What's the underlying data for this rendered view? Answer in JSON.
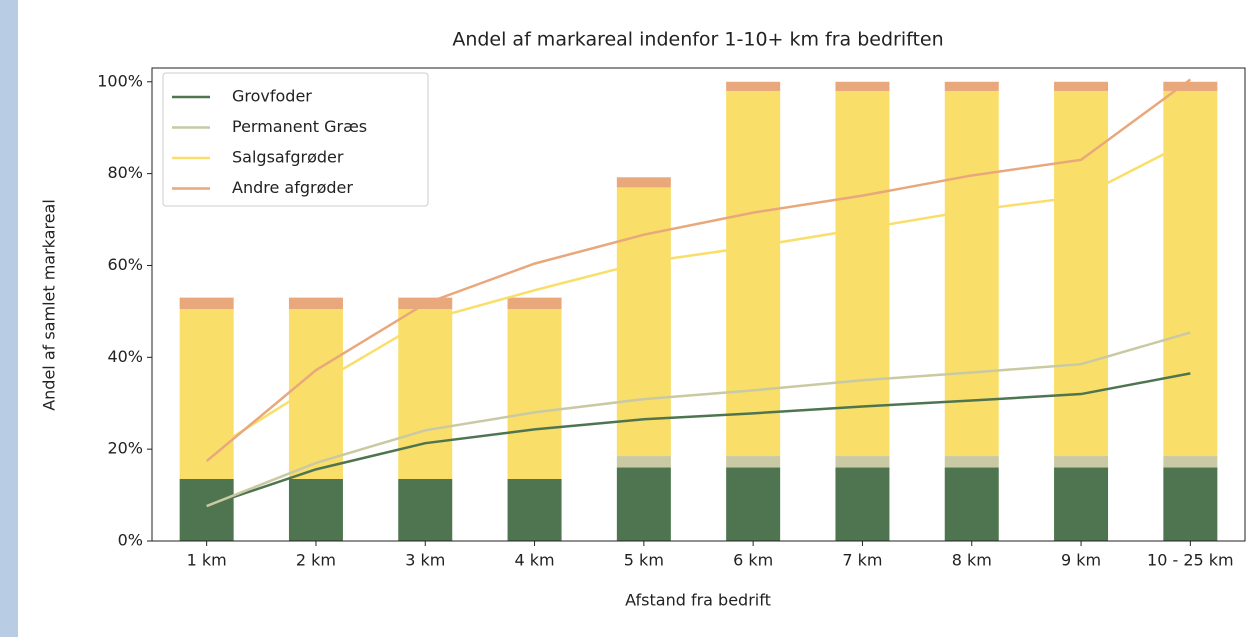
{
  "chart_data": {
    "type": "stacked_bar_line",
    "title": "Andel af markareal indenfor 1-10+ km fra bedriften",
    "xlabel": "Afstand fra bedrift",
    "ylabel": "Andel af samlet markareal",
    "categories": [
      "1 km",
      "2 km",
      "3 km",
      "4 km",
      "5 km",
      "6 km",
      "7 km",
      "8 km",
      "9 km",
      "10 - 25 km"
    ],
    "ylim": [
      0,
      103
    ],
    "yticks": [
      {
        "value": 0,
        "label": "0%"
      },
      {
        "value": 20,
        "label": "20%"
      },
      {
        "value": 40,
        "label": "40%"
      },
      {
        "value": 60,
        "label": "60%"
      },
      {
        "value": 80,
        "label": "80%"
      },
      {
        "value": 100,
        "label": "100%"
      }
    ],
    "legend": "upper left",
    "series": [
      {
        "name": "Grovfoder",
        "color": "#4e7550",
        "values": [
          13.5,
          13.5,
          13.5,
          13.5,
          16,
          16,
          16,
          16,
          16,
          16
        ],
        "line_values": [
          7.6,
          15.6,
          21.3,
          24.3,
          26.5,
          27.8,
          29.3,
          30.6,
          32,
          36.5
        ]
      },
      {
        "name": "Permanent Græs",
        "color": "#c9c9a3",
        "values": [
          0,
          0,
          0,
          0,
          2.5,
          2.5,
          2.5,
          2.5,
          2.5,
          2.5
        ],
        "line_values": [
          7.6,
          17,
          24.1,
          28,
          30.9,
          32.8,
          35,
          36.7,
          38.5,
          45.4
        ]
      },
      {
        "name": "Salgsafgrøder",
        "color": "#f9df6a",
        "values": [
          37,
          37,
          37,
          37,
          58.5,
          79.5,
          79.5,
          79.5,
          79.5,
          79.5
        ],
        "line_values": [
          19.1,
          34,
          48,
          54.6,
          60.7,
          64.1,
          68,
          72,
          75,
          87.2
        ]
      },
      {
        "name": "Andre afgrøder",
        "color": "#e8a87c",
        "values": [
          2.5,
          2.5,
          2.5,
          2.5,
          2.2,
          2,
          2,
          2,
          2,
          2
        ],
        "line_values": [
          17.4,
          37.2,
          51.7,
          60.4,
          66.7,
          71.5,
          75.2,
          79.6,
          83,
          100.5
        ]
      }
    ]
  }
}
